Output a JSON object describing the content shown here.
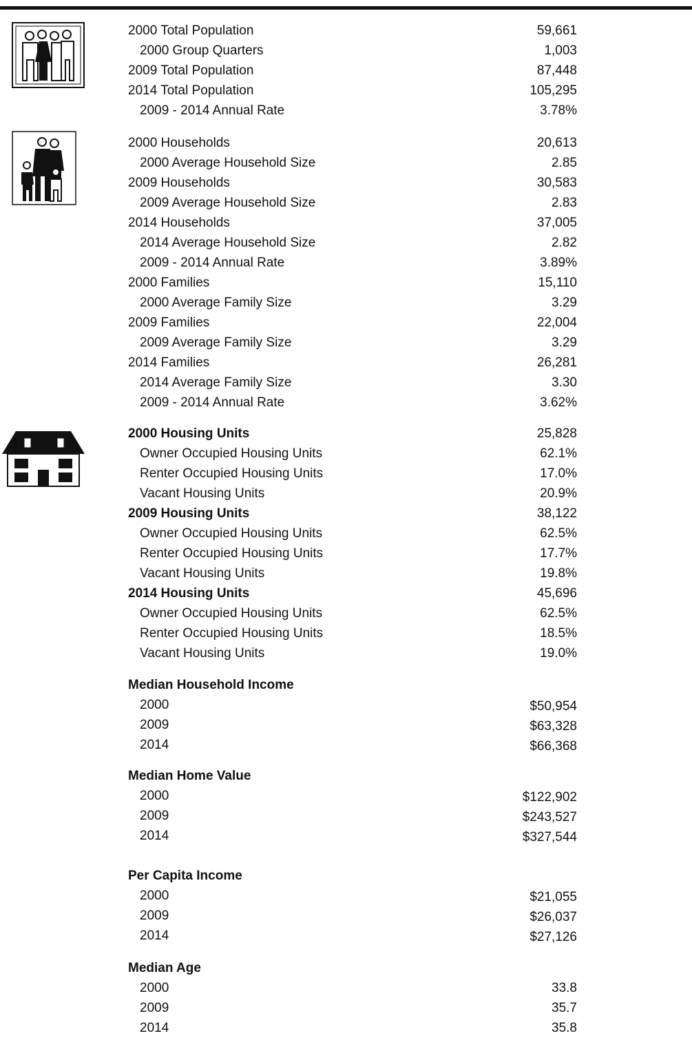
{
  "sections": [
    {
      "rows": [
        {
          "label": "2000 Total Population",
          "value": "59,661"
        },
        {
          "label": "2000 Group Quarters",
          "value": "1,003",
          "indent": true
        },
        {
          "label": "2009 Total Population",
          "value": "87,448"
        },
        {
          "label": "2014 Total Population",
          "value": "105,295"
        },
        {
          "label": "2009 - 2014 Annual Rate",
          "value": "3.78%",
          "indent": true
        }
      ]
    },
    {
      "rows": [
        {
          "label": "2000 Households",
          "value": "20,613"
        },
        {
          "label": "2000 Average Household Size",
          "value": "2.85",
          "indent": true
        },
        {
          "label": "2009 Households",
          "value": "30,583"
        },
        {
          "label": "2009 Average Household Size",
          "value": "2.83",
          "indent": true
        },
        {
          "label": "2014 Households",
          "value": "37,005"
        },
        {
          "label": "2014 Average Household Size",
          "value": "2.82",
          "indent": true
        },
        {
          "label": "2009 - 2014 Annual Rate",
          "value": "3.89%",
          "indent": true
        },
        {
          "label": "2000 Families",
          "value": "15,110"
        },
        {
          "label": "2000 Average Family Size",
          "value": "3.29",
          "indent": true
        },
        {
          "label": "2009 Families",
          "value": "22,004"
        },
        {
          "label": "2009 Average Family Size",
          "value": "3.29",
          "indent": true
        },
        {
          "label": "2014 Families",
          "value": "26,281"
        },
        {
          "label": "2014 Average Family Size",
          "value": "3.30",
          "indent": true
        },
        {
          "label": "2009 - 2014 Annual Rate",
          "value": "3.62%",
          "indent": true
        }
      ]
    },
    {
      "rows": [
        {
          "label": "2000 Housing Units",
          "value": "25,828",
          "bold": true
        },
        {
          "label": "Owner Occupied Housing Units",
          "value": "62.1%",
          "indent": true
        },
        {
          "label": "Renter Occupied Housing Units",
          "value": "17.0%",
          "indent": true
        },
        {
          "label": "Vacant Housing Units",
          "value": "20.9%",
          "indent": true
        },
        {
          "label": "2009 Housing Units",
          "value": "38,122",
          "bold": true
        },
        {
          "label": "Owner Occupied Housing Units",
          "value": "62.5%",
          "indent": true
        },
        {
          "label": "Renter Occupied Housing Units",
          "value": "17.7%",
          "indent": true
        },
        {
          "label": "Vacant Housing Units",
          "value": "19.8%",
          "indent": true
        },
        {
          "label": "2014 Housing Units",
          "value": "45,696",
          "bold": true
        },
        {
          "label": "Owner Occupied Housing Units",
          "value": "62.5%",
          "indent": true
        },
        {
          "label": "Renter Occupied Housing Units",
          "value": "18.5%",
          "indent": true
        },
        {
          "label": "Vacant Housing Units",
          "value": "19.0%",
          "indent": true
        }
      ]
    },
    {
      "rows": [
        {
          "label": "Median Household Income",
          "bold": true
        },
        {
          "label": "2000",
          "value": "$50,954",
          "indent": true
        },
        {
          "label": "2009",
          "value": "$63,328",
          "indent": true
        },
        {
          "label": "2014",
          "value": "$66,368",
          "indent": true
        }
      ]
    },
    {
      "rows": [
        {
          "label": "Median Home Value",
          "bold": true
        },
        {
          "label": "2000",
          "value": "$122,902",
          "indent": true
        },
        {
          "label": "2009",
          "value": "$243,527",
          "indent": true
        },
        {
          "label": "2014",
          "value": "$327,544",
          "indent": true
        }
      ]
    },
    {
      "rows": [
        {
          "label": "Per Capita Income",
          "bold": true
        },
        {
          "label": "2000",
          "value": "$21,055",
          "indent": true
        },
        {
          "label": "2009",
          "value": "$26,037",
          "indent": true
        },
        {
          "label": "2014",
          "value": "$27,126",
          "indent": true
        }
      ]
    },
    {
      "rows": [
        {
          "label": "Median Age",
          "bold": true
        },
        {
          "label": "2000",
          "value": "33.8",
          "indent": true
        },
        {
          "label": "2009",
          "value": "35.7",
          "indent": true
        },
        {
          "label": "2014",
          "value": "35.8",
          "indent": true
        }
      ]
    }
  ]
}
